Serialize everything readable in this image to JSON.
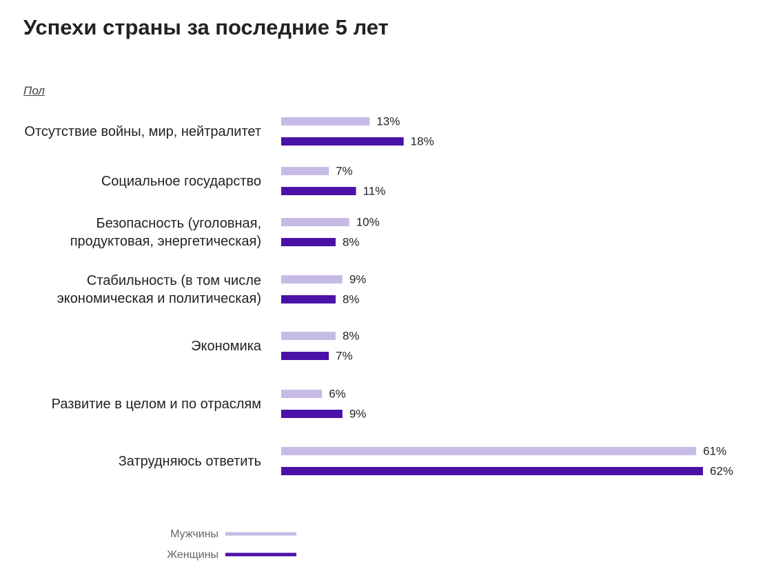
{
  "chart_data": {
    "type": "bar",
    "orientation": "horizontal",
    "title": "Успехи страны за последние 5 лет",
    "subtitle": "Пол",
    "categories": [
      "Отсутствие войны, мир, нейтралитет",
      "Социальное государство",
      "Безопасность (уголовная, продуктовая, энергетическая)",
      "Стабильность (в том числе экономическая и политическая)",
      "Экономика",
      "Развитие в целом и по отраслям",
      "Затрудняюсь ответить"
    ],
    "series": [
      {
        "name": "Мужчины",
        "color": "#c6bbe7",
        "values": [
          13,
          7,
          10,
          9,
          8,
          6,
          61
        ],
        "value_labels": [
          "13%",
          "7%",
          "10%",
          "9%",
          "8%",
          "6%",
          "61%"
        ]
      },
      {
        "name": "Женщины",
        "color": "#4a12a6",
        "values": [
          18,
          11,
          8,
          8,
          7,
          9,
          62
        ],
        "value_labels": [
          "18%",
          "11%",
          "8%",
          "8%",
          "7%",
          "9%",
          "62%"
        ]
      }
    ]
  }
}
